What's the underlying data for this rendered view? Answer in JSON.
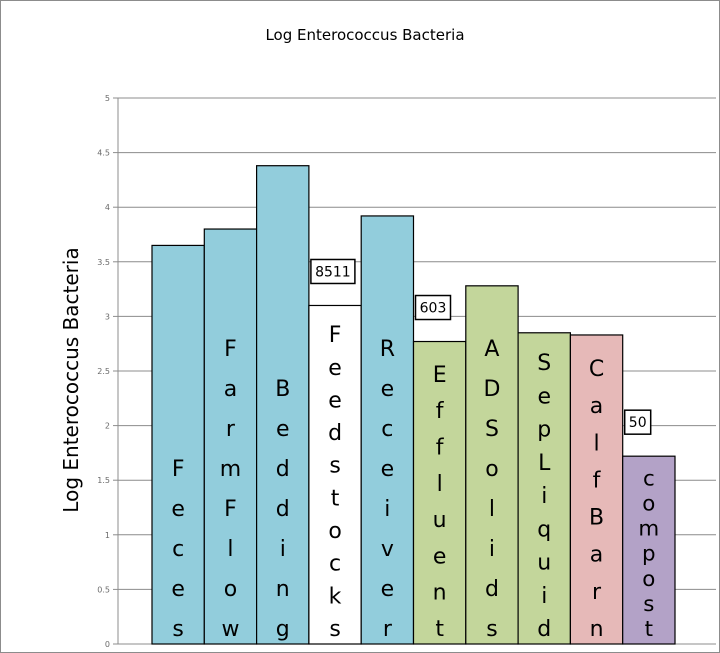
{
  "chart_data": {
    "type": "bar",
    "title": "Log Enterococcus Bacteria",
    "xlabel": "",
    "ylabel": "Log Enterococcus Bacteria",
    "ylim": [
      0,
      5
    ],
    "yticks": [
      "0",
      "0.5",
      "1",
      "1.5",
      "2",
      "2.5",
      "3",
      "3.5",
      "4",
      "4.5",
      "5"
    ],
    "grid": true,
    "categories": [
      "Feces",
      "FarmFlow",
      "Bedding",
      "Feedstocks",
      "Receiver",
      "Effluent",
      "ADSolids",
      "SepLiquid",
      "CalfBarn",
      "compost"
    ],
    "bar_labels": [
      "Feces",
      "FarmFlow",
      "Bedding",
      "Feedstocks",
      "Receiver",
      "Effluent",
      "AD Solids",
      "SepLiquid",
      "CalfBarn",
      "compost"
    ],
    "values": [
      3.65,
      3.8,
      4.38,
      3.1,
      3.92,
      2.77,
      3.28,
      2.85,
      2.83,
      1.72
    ],
    "colors": [
      "#92cddc",
      "#92cddc",
      "#92cddc",
      "#ffffff",
      "#92cddc",
      "#c3d69b",
      "#c3d69b",
      "#c3d69b",
      "#e6b9b8",
      "#b3a2c7"
    ],
    "annotations": [
      {
        "text": "8511",
        "category": "Feedstocks"
      },
      {
        "text": "603",
        "category": "Effluent"
      },
      {
        "text": "50",
        "category": "compost"
      }
    ]
  }
}
